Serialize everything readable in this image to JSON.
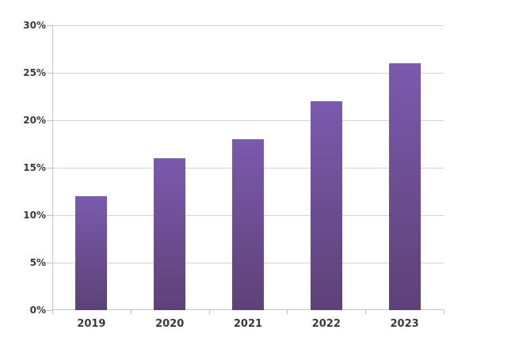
{
  "chart_data": {
    "type": "bar",
    "categories": [
      "2019",
      "2020",
      "2021",
      "2022",
      "2023"
    ],
    "values": [
      12,
      16,
      18,
      22,
      26
    ],
    "ylim": [
      0,
      30
    ],
    "ytick_step": 5,
    "ytick_labels": [
      "0%",
      "5%",
      "10%",
      "15%",
      "20%",
      "25%",
      "30%"
    ],
    "grid": true,
    "legend_position": "none",
    "colors": {
      "bar_gradient_top": "#7A5AAD",
      "bar_gradient_bottom": "#5D4276",
      "gridline": "#D4D4D4",
      "axis": "#C3C3C3",
      "tick": "#BDBDBD",
      "label_text": "#3B3B3B",
      "background": "#FFFFFF"
    }
  }
}
